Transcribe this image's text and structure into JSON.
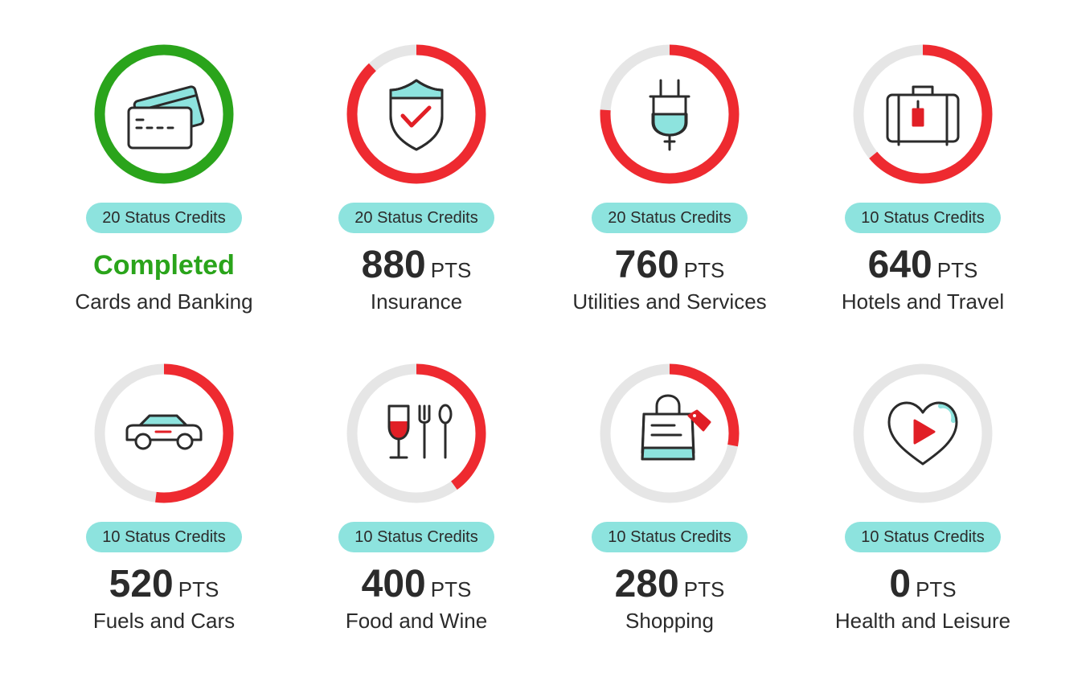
{
  "colors": {
    "completed": "#2aa41b",
    "progress": "#ee2a30",
    "track": "#e6e6e6",
    "badge": "#8de3de",
    "icon_stroke": "#2b2b2b",
    "icon_fill": "#8de3de",
    "icon_accent": "#e11f26"
  },
  "pts_unit": "PTS",
  "categories": [
    {
      "id": "cards",
      "name": "Cards and Banking",
      "credits": "20 Status Credits",
      "completed": true,
      "status_label": "Completed",
      "progress": 1.0,
      "icon": "credit-cards-icon"
    },
    {
      "id": "insurance",
      "name": "Insurance",
      "credits": "20 Status Credits",
      "completed": false,
      "points": "880",
      "progress": 0.88,
      "icon": "shield-check-icon"
    },
    {
      "id": "utilities",
      "name": "Utilities and Services",
      "credits": "20 Status Credits",
      "completed": false,
      "points": "760",
      "progress": 0.76,
      "icon": "plug-icon"
    },
    {
      "id": "travel",
      "name": "Hotels and Travel",
      "credits": "10 Status Credits",
      "completed": false,
      "points": "640",
      "progress": 0.64,
      "icon": "suitcase-icon"
    },
    {
      "id": "fuel",
      "name": "Fuels and Cars",
      "credits": "10 Status Credits",
      "completed": false,
      "points": "520",
      "progress": 0.52,
      "icon": "car-icon"
    },
    {
      "id": "food",
      "name": "Food and Wine",
      "credits": "10 Status Credits",
      "completed": false,
      "points": "400",
      "progress": 0.4,
      "icon": "wine-cutlery-icon"
    },
    {
      "id": "shopping",
      "name": "Shopping",
      "credits": "10 Status Credits",
      "completed": false,
      "points": "280",
      "progress": 0.28,
      "icon": "shopping-bag-icon"
    },
    {
      "id": "health",
      "name": "Health and Leisure",
      "credits": "10 Status Credits",
      "completed": false,
      "points": "0",
      "progress": 0.0,
      "icon": "heart-play-icon"
    }
  ]
}
